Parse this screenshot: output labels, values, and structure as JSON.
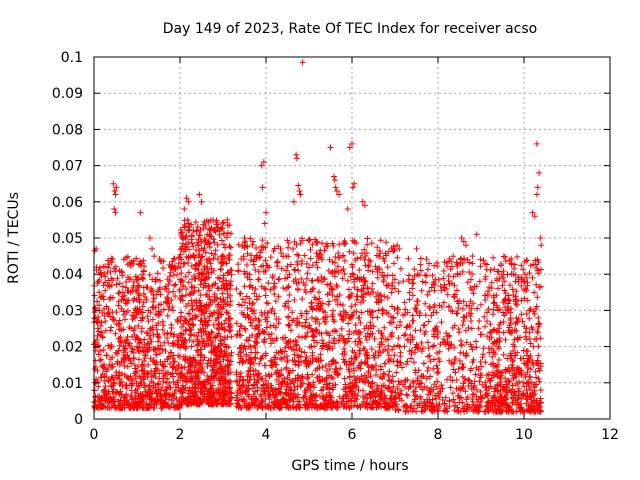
{
  "chart_data": {
    "type": "scatter",
    "title": "Day 149 of 2023, Rate Of TEC Index for receiver acso",
    "xlabel": "GPS time / hours",
    "ylabel": "ROTI / TECUs",
    "xlim": [
      0,
      12
    ],
    "ylim": [
      0,
      0.1
    ],
    "x_ticks": [
      "0",
      "2",
      "4",
      "6",
      "8",
      "10",
      "12"
    ],
    "y_ticks": [
      "0",
      "0.01",
      "0.02",
      "0.03",
      "0.04",
      "0.05",
      "0.06",
      "0.07",
      "0.08",
      "0.09",
      "0.1"
    ],
    "grid": true,
    "marker": "+",
    "color": "#ff0000",
    "series": [
      {
        "name": "ROTI",
        "points": [
          [
            0.02,
            0.0465
          ],
          [
            0.05,
            0.047
          ],
          [
            0.08,
            0.0375
          ],
          [
            0.12,
            0.035
          ],
          [
            0.1,
            0.038
          ],
          [
            0.45,
            0.065
          ],
          [
            0.48,
            0.063
          ],
          [
            0.5,
            0.062
          ],
          [
            0.52,
            0.064
          ],
          [
            0.47,
            0.058
          ],
          [
            0.5,
            0.057
          ],
          [
            1.08,
            0.057
          ],
          [
            1.3,
            0.05
          ],
          [
            1.35,
            0.047
          ],
          [
            1.4,
            0.045
          ],
          [
            2.1,
            0.058
          ],
          [
            2.15,
            0.061
          ],
          [
            2.2,
            0.06
          ],
          [
            2.18,
            0.055
          ],
          [
            2.22,
            0.053
          ],
          [
            2.45,
            0.062
          ],
          [
            2.5,
            0.06
          ],
          [
            3.1,
            0.055
          ],
          [
            3.5,
            0.05
          ],
          [
            3.7,
            0.049
          ],
          [
            3.9,
            0.07
          ],
          [
            3.95,
            0.071
          ],
          [
            3.92,
            0.064
          ],
          [
            4.0,
            0.057
          ],
          [
            3.97,
            0.054
          ],
          [
            4.7,
            0.073
          ],
          [
            4.72,
            0.072
          ],
          [
            4.75,
            0.0645
          ],
          [
            4.78,
            0.063
          ],
          [
            4.8,
            0.062
          ],
          [
            4.65,
            0.06
          ],
          [
            4.85,
            0.0985
          ],
          [
            5.5,
            0.075
          ],
          [
            5.6,
            0.066
          ],
          [
            5.62,
            0.064
          ],
          [
            5.65,
            0.063
          ],
          [
            5.7,
            0.062
          ],
          [
            5.58,
            0.067
          ],
          [
            5.95,
            0.075
          ],
          [
            6.0,
            0.076
          ],
          [
            6.05,
            0.065
          ],
          [
            6.02,
            0.064
          ],
          [
            5.9,
            0.058
          ],
          [
            6.25,
            0.06
          ],
          [
            6.3,
            0.059
          ],
          [
            7.05,
            0.048
          ],
          [
            7.1,
            0.047
          ],
          [
            7.5,
            0.047
          ],
          [
            8.55,
            0.05
          ],
          [
            8.6,
            0.049
          ],
          [
            8.65,
            0.048
          ],
          [
            8.8,
            0.045
          ],
          [
            8.9,
            0.051
          ],
          [
            9.7,
            0.043
          ],
          [
            9.75,
            0.04
          ],
          [
            10.2,
            0.057
          ],
          [
            10.25,
            0.056
          ],
          [
            10.3,
            0.062
          ],
          [
            10.32,
            0.064
          ],
          [
            10.35,
            0.068
          ],
          [
            10.3,
            0.076
          ],
          [
            10.38,
            0.05
          ],
          [
            10.4,
            0.048
          ]
        ],
        "clusters": [
          {
            "x_range": [
              0.0,
              2.0
            ],
            "y_range": [
              0.003,
              0.045
            ],
            "density": "high"
          },
          {
            "x_range": [
              2.0,
              3.2
            ],
            "y_range": [
              0.004,
              0.055
            ],
            "density": "high"
          },
          {
            "x_range": [
              3.3,
              7.0
            ],
            "y_range": [
              0.003,
              0.05
            ],
            "density": "very high"
          },
          {
            "x_range": [
              7.0,
              9.1
            ],
            "y_range": [
              0.002,
              0.045
            ],
            "density": "medium"
          },
          {
            "x_range": [
              9.1,
              10.4
            ],
            "y_range": [
              0.002,
              0.045
            ],
            "density": "medium"
          }
        ]
      }
    ]
  }
}
